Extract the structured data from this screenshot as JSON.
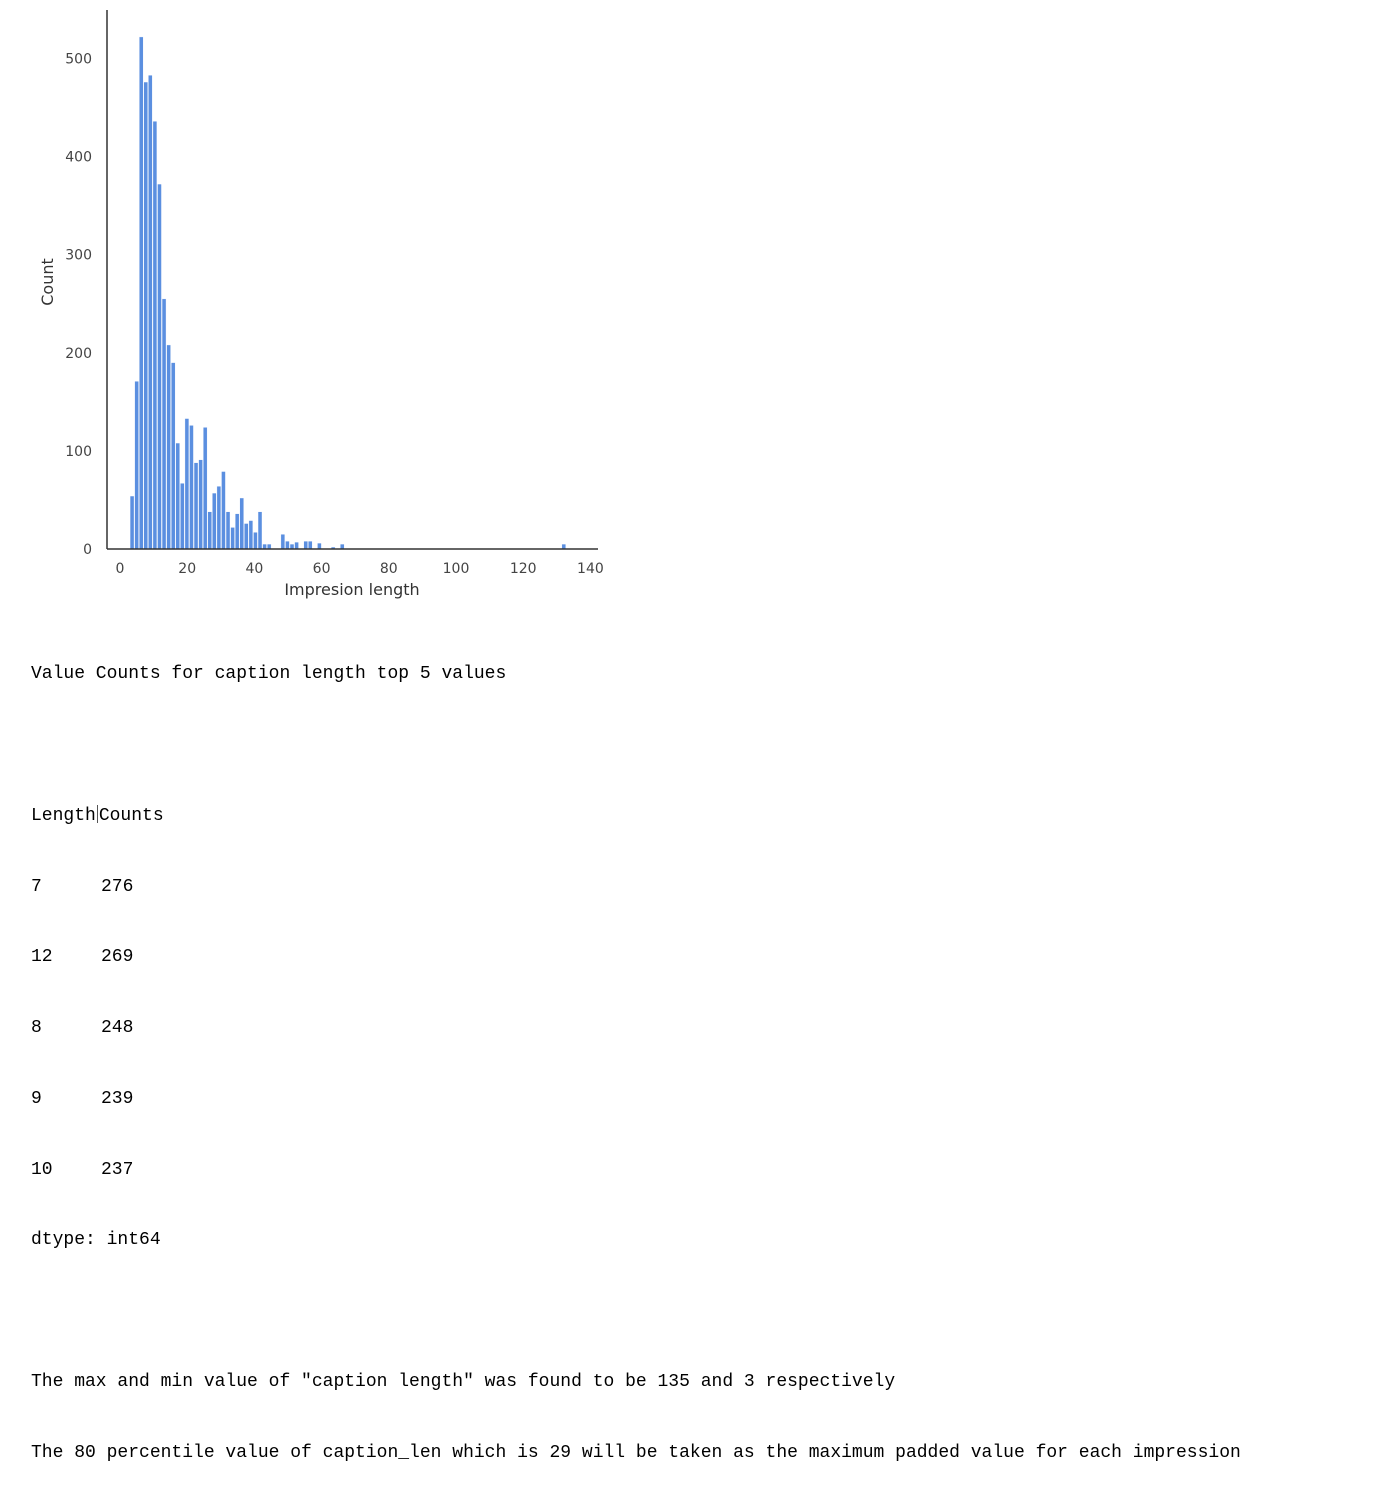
{
  "chart_data": {
    "type": "bar",
    "xlabel": "Impresion length",
    "ylabel": "Count",
    "xlim": [
      -4,
      142
    ],
    "ylim": [
      0,
      550
    ],
    "xticks": [
      0,
      20,
      40,
      60,
      80,
      100,
      120,
      140
    ],
    "yticks": [
      0,
      100,
      200,
      300,
      400,
      500
    ],
    "bar_color": "#5b8fe0",
    "bin_width": 1.36,
    "bins": [
      {
        "x": 3.0,
        "count": 54
      },
      {
        "x": 4.36,
        "count": 171
      },
      {
        "x": 5.72,
        "count": 522
      },
      {
        "x": 7.08,
        "count": 476
      },
      {
        "x": 8.44,
        "count": 483
      },
      {
        "x": 9.8,
        "count": 436
      },
      {
        "x": 11.16,
        "count": 372
      },
      {
        "x": 12.52,
        "count": 255
      },
      {
        "x": 13.88,
        "count": 208
      },
      {
        "x": 15.24,
        "count": 190
      },
      {
        "x": 16.6,
        "count": 108
      },
      {
        "x": 17.96,
        "count": 67
      },
      {
        "x": 19.32,
        "count": 133
      },
      {
        "x": 20.68,
        "count": 126
      },
      {
        "x": 22.04,
        "count": 88
      },
      {
        "x": 23.4,
        "count": 91
      },
      {
        "x": 24.76,
        "count": 124
      },
      {
        "x": 26.12,
        "count": 38
      },
      {
        "x": 27.48,
        "count": 57
      },
      {
        "x": 28.84,
        "count": 64
      },
      {
        "x": 30.2,
        "count": 79
      },
      {
        "x": 31.56,
        "count": 38
      },
      {
        "x": 32.92,
        "count": 22
      },
      {
        "x": 34.28,
        "count": 36
      },
      {
        "x": 35.64,
        "count": 52
      },
      {
        "x": 37.0,
        "count": 26
      },
      {
        "x": 38.36,
        "count": 29
      },
      {
        "x": 39.72,
        "count": 17
      },
      {
        "x": 41.08,
        "count": 38
      },
      {
        "x": 42.44,
        "count": 5
      },
      {
        "x": 43.8,
        "count": 5
      },
      {
        "x": 47.88,
        "count": 15
      },
      {
        "x": 49.24,
        "count": 8
      },
      {
        "x": 50.6,
        "count": 5
      },
      {
        "x": 51.96,
        "count": 7
      },
      {
        "x": 54.68,
        "count": 8
      },
      {
        "x": 56.04,
        "count": 8
      },
      {
        "x": 58.76,
        "count": 6
      },
      {
        "x": 62.84,
        "count": 2
      },
      {
        "x": 65.56,
        "count": 5
      },
      {
        "x": 131.5,
        "count": 5
      }
    ]
  },
  "output": {
    "heading": "Value Counts for caption length top 5 values",
    "table_header": {
      "length": "Length",
      "counts": "Counts"
    },
    "rows": [
      {
        "length": "7",
        "count": "276"
      },
      {
        "length": "12",
        "count": "269"
      },
      {
        "length": "8",
        "count": "248"
      },
      {
        "length": "9",
        "count": "239"
      },
      {
        "length": "10",
        "count": "237"
      }
    ],
    "dtype": "dtype: int64",
    "line_max_min": "The max and min value of \"caption length\" was found to be 135 and 3 respectively",
    "line_percentile": "The 80 percentile value of caption_len which is 29 will be taken as the maximum padded value for each impression"
  }
}
